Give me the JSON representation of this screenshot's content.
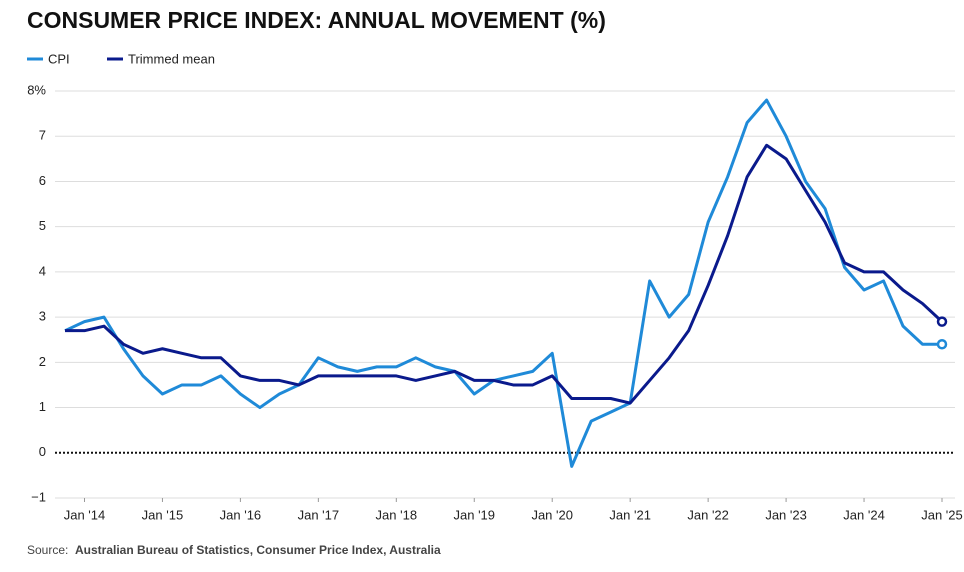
{
  "chart_data": {
    "type": "line",
    "title": "CONSUMER PRICE INDEX: ANNUAL MOVEMENT (%)",
    "source_label": "Source:",
    "source": "Australian Bureau of Statistics, Consumer Price Index, Australia",
    "x": [
      2013.75,
      2014.0,
      2014.25,
      2014.5,
      2014.75,
      2015.0,
      2015.25,
      2015.5,
      2015.75,
      2016.0,
      2016.25,
      2016.5,
      2016.75,
      2017.0,
      2017.25,
      2017.5,
      2017.75,
      2018.0,
      2018.25,
      2018.5,
      2018.75,
      2019.0,
      2019.25,
      2019.5,
      2019.75,
      2020.0,
      2020.25,
      2020.5,
      2020.75,
      2021.0,
      2021.25,
      2021.5,
      2021.75,
      2022.0,
      2022.25,
      2022.5,
      2022.75,
      2023.0,
      2023.25,
      2023.5,
      2023.75,
      2024.0,
      2024.25,
      2024.5,
      2024.75,
      2025.0
    ],
    "series": [
      {
        "name": "CPI",
        "color": "#1f8ad8",
        "values": [
          2.7,
          2.9,
          3.0,
          2.3,
          1.7,
          1.3,
          1.5,
          1.5,
          1.7,
          1.3,
          1.0,
          1.3,
          1.5,
          2.1,
          1.9,
          1.8,
          1.9,
          1.9,
          2.1,
          1.9,
          1.8,
          1.3,
          1.6,
          1.7,
          1.8,
          2.2,
          -0.3,
          0.7,
          0.9,
          1.1,
          3.8,
          3.0,
          3.5,
          5.1,
          6.1,
          7.3,
          7.8,
          7.0,
          6.0,
          5.4,
          4.1,
          3.6,
          3.8,
          2.8,
          2.4,
          2.4
        ]
      },
      {
        "name": "Trimmed mean",
        "color": "#0a1a8c",
        "values": [
          2.7,
          2.7,
          2.8,
          2.4,
          2.2,
          2.3,
          2.2,
          2.1,
          2.1,
          1.7,
          1.6,
          1.6,
          1.5,
          1.7,
          1.7,
          1.7,
          1.7,
          1.7,
          1.6,
          1.7,
          1.8,
          1.6,
          1.6,
          1.5,
          1.5,
          1.7,
          1.2,
          1.2,
          1.2,
          1.1,
          1.6,
          2.1,
          2.7,
          3.7,
          4.8,
          6.1,
          6.8,
          6.5,
          5.8,
          5.1,
          4.2,
          4.0,
          4.0,
          3.6,
          3.3,
          2.9
        ]
      }
    ],
    "xlim": [
      2013.75,
      2025.0
    ],
    "xticks": [
      {
        "value": 2014,
        "label": "Jan '14"
      },
      {
        "value": 2015,
        "label": "Jan '15"
      },
      {
        "value": 2016,
        "label": "Jan '16"
      },
      {
        "value": 2017,
        "label": "Jan '17"
      },
      {
        "value": 2018,
        "label": "Jan '18"
      },
      {
        "value": 2019,
        "label": "Jan '19"
      },
      {
        "value": 2020,
        "label": "Jan '20"
      },
      {
        "value": 2021,
        "label": "Jan '21"
      },
      {
        "value": 2022,
        "label": "Jan '22"
      },
      {
        "value": 2023,
        "label": "Jan '23"
      },
      {
        "value": 2024,
        "label": "Jan '24"
      },
      {
        "value": 2025,
        "label": "Jan '25"
      }
    ],
    "ylim": [
      -1,
      8
    ],
    "yticks": [
      {
        "value": -1,
        "label": "−1"
      },
      0,
      1,
      2,
      3,
      4,
      5,
      6,
      7,
      {
        "value": 8,
        "label": "8%"
      }
    ],
    "grid": true,
    "legend": "top-left"
  }
}
